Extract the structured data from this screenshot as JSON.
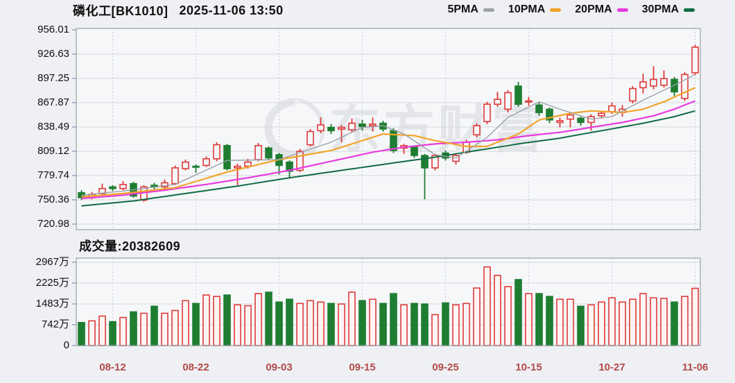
{
  "header": {
    "title": "磷化工[BK1010]",
    "datetime": "2025-11-06 13:50"
  },
  "legend": [
    {
      "id": "5pma",
      "label": "5PMA",
      "color": "#9ba1a8"
    },
    {
      "id": "10pma",
      "label": "10PMA",
      "color": "#f0a429"
    },
    {
      "id": "20pma",
      "label": "20PMA",
      "color": "#e83ae0"
    },
    {
      "id": "30pma",
      "label": "30PMA",
      "color": "#116b45"
    }
  ],
  "volume_header": {
    "label": "成交量:",
    "value": "20382609"
  },
  "watermark": {
    "text": "东方财富"
  },
  "colors": {
    "up": "#de3a3a",
    "down": "#1e7d31",
    "up_fill": "#fdf4f4",
    "plot_bg": "#f6f7f9",
    "grid": "#d4d7db",
    "grid_dash": "#c7cbd2",
    "border": "#9aa0a8",
    "tick": "#7d92b8",
    "x_label": "#b34a4a",
    "watermark": "#e3e5e9"
  },
  "chart_data": {
    "type": "candlestick+volume",
    "title": "磷化工[BK1010] 2025-11-06 13:50",
    "price_axis": {
      "ticks": [
        "956.01",
        "926.63",
        "897.25",
        "867.87",
        "838.49",
        "809.12",
        "779.74",
        "750.36",
        "720.98"
      ],
      "max": 956.01,
      "min": 720.98
    },
    "volume_axis": {
      "ticks": [
        "2967万",
        "2225万",
        "1483万",
        "742万",
        "0"
      ],
      "tick_values_wan": [
        2967,
        2225,
        1483,
        742,
        0
      ],
      "max_wan": 2967
    },
    "x_ticks": {
      "labels": [
        "08-12",
        "08-22",
        "09-03",
        "09-15",
        "09-25",
        "10-15",
        "10-27",
        "11-06"
      ],
      "indices": [
        3,
        11,
        19,
        27,
        35,
        43,
        51,
        59
      ]
    },
    "candle_fields": [
      "date",
      "open",
      "high",
      "low",
      "close",
      "volume_wan"
    ],
    "candles": [
      [
        "08-07",
        759,
        762,
        750,
        753,
        820
      ],
      [
        "08-08",
        753,
        760,
        751,
        757,
        880
      ],
      [
        "08-11",
        758,
        770,
        756,
        764,
        1050
      ],
      [
        "08-12",
        766,
        768,
        761,
        764,
        850
      ],
      [
        "08-13",
        764,
        773,
        762,
        769,
        1000
      ],
      [
        "08-14",
        770,
        772,
        753,
        755,
        1200
      ],
      [
        "08-15",
        750,
        768,
        748,
        766,
        1150
      ],
      [
        "08-18",
        768,
        771,
        763,
        766,
        1400
      ],
      [
        "08-19",
        766,
        775,
        764,
        771,
        1150
      ],
      [
        "08-20",
        770,
        792,
        768,
        789,
        1250
      ],
      [
        "08-21",
        788,
        799,
        786,
        796,
        1600
      ],
      [
        "08-22",
        791,
        793,
        783,
        790,
        1500
      ],
      [
        "08-25",
        792,
        803,
        790,
        800,
        1800
      ],
      [
        "08-26",
        800,
        820,
        797,
        817,
        1750
      ],
      [
        "08-27",
        816,
        818,
        786,
        788,
        1800
      ],
      [
        "08-28",
        789,
        794,
        768,
        791,
        1450
      ],
      [
        "08-29",
        791,
        800,
        788,
        796,
        1420
      ],
      [
        "09-01",
        799,
        819,
        797,
        816,
        1850
      ],
      [
        "09-02",
        813,
        815,
        798,
        801,
        1900
      ],
      [
        "09-03",
        805,
        807,
        781,
        792,
        1550
      ],
      [
        "09-04",
        796,
        798,
        776,
        785,
        1650
      ],
      [
        "09-05",
        786,
        812,
        784,
        809,
        1500
      ],
      [
        "09-08",
        817,
        836,
        815,
        833,
        1600
      ],
      [
        "09-09",
        834,
        850,
        831,
        841,
        1550
      ],
      [
        "09-10",
        838,
        842,
        830,
        834,
        1500
      ],
      [
        "09-11",
        836,
        841,
        820,
        838,
        1480
      ],
      [
        "09-12",
        835,
        849,
        832,
        843,
        1900
      ],
      [
        "09-15",
        842,
        847,
        834,
        839,
        1600
      ],
      [
        "09-16",
        840,
        850,
        833,
        842,
        1650
      ],
      [
        "09-17",
        843,
        846,
        833,
        836,
        1500
      ],
      [
        "09-18",
        834,
        837,
        807,
        810,
        1850
      ],
      [
        "09-19",
        813,
        818,
        806,
        816,
        1450
      ],
      [
        "09-22",
        814,
        816,
        801,
        804,
        1500
      ],
      [
        "09-23",
        804,
        806,
        751,
        789,
        1480
      ],
      [
        "09-24",
        789,
        806,
        786,
        804,
        1100
      ],
      [
        "09-25",
        807,
        810,
        798,
        801,
        1520
      ],
      [
        "09-26",
        797,
        807,
        793,
        804,
        1450
      ],
      [
        "09-29",
        808,
        823,
        806,
        820,
        1500
      ],
      [
        "09-30",
        829,
        843,
        826,
        840,
        2050
      ],
      [
        "10-09",
        845,
        869,
        842,
        866,
        2800
      ],
      [
        "10-10",
        866,
        881,
        863,
        872,
        2500
      ],
      [
        "10-13",
        860,
        883,
        856,
        880,
        2100
      ],
      [
        "10-14",
        888,
        893,
        863,
        866,
        2350
      ],
      [
        "10-15",
        869,
        875,
        864,
        870,
        1850
      ],
      [
        "10-16",
        865,
        868,
        852,
        856,
        1850
      ],
      [
        "10-17",
        860,
        862,
        843,
        847,
        1750
      ],
      [
        "10-20",
        844,
        850,
        838,
        846,
        1650
      ],
      [
        "10-21",
        848,
        856,
        838,
        853,
        1650
      ],
      [
        "10-22",
        849,
        851,
        840,
        844,
        1400
      ],
      [
        "10-23",
        844,
        854,
        834,
        851,
        1450
      ],
      [
        "10-24",
        852,
        858,
        849,
        855,
        1550
      ],
      [
        "10-27",
        857,
        868,
        854,
        864,
        1700
      ],
      [
        "10-28",
        856,
        865,
        851,
        860,
        1550
      ],
      [
        "10-29",
        870,
        888,
        867,
        885,
        1650
      ],
      [
        "10-30",
        886,
        903,
        879,
        893,
        1850
      ],
      [
        "10-31",
        888,
        912,
        884,
        896,
        1700
      ],
      [
        "11-03",
        889,
        907,
        886,
        897,
        1680
      ],
      [
        "11-04",
        896,
        899,
        876,
        881,
        1550
      ],
      [
        "11-05",
        873,
        905,
        870,
        902,
        1750
      ],
      [
        "11-06",
        904,
        938,
        901,
        935,
        2038
      ]
    ],
    "ma_lines": [
      {
        "name": "5PMA",
        "color": "#9ba1a8",
        "width": 1.4,
        "waypoints": [
          [
            0,
            756
          ],
          [
            4,
            761
          ],
          [
            9,
            769
          ],
          [
            14,
            798
          ],
          [
            19,
            799
          ],
          [
            24,
            820
          ],
          [
            27,
            838
          ],
          [
            29,
            840
          ],
          [
            31,
            830
          ],
          [
            34,
            805
          ],
          [
            36,
            801
          ],
          [
            39,
            826
          ],
          [
            41,
            850
          ],
          [
            44,
            869
          ],
          [
            46,
            860
          ],
          [
            49,
            848
          ],
          [
            51,
            851
          ],
          [
            54,
            871
          ],
          [
            57,
            889
          ],
          [
            59,
            902
          ]
        ]
      },
      {
        "name": "10PMA",
        "color": "#f0a429",
        "width": 2.2,
        "waypoints": [
          [
            0,
            754
          ],
          [
            4,
            758
          ],
          [
            9,
            765
          ],
          [
            14,
            784
          ],
          [
            19,
            799
          ],
          [
            24,
            810
          ],
          [
            29,
            830
          ],
          [
            32,
            828
          ],
          [
            34,
            822
          ],
          [
            37,
            815
          ],
          [
            39,
            815
          ],
          [
            42,
            830
          ],
          [
            44,
            847
          ],
          [
            47,
            855
          ],
          [
            49,
            858
          ],
          [
            52,
            856
          ],
          [
            54,
            860
          ],
          [
            56,
            869
          ],
          [
            59,
            886
          ]
        ]
      },
      {
        "name": "20PMA",
        "color": "#e83ae0",
        "width": 2.2,
        "waypoints": [
          [
            0,
            752
          ],
          [
            4,
            756
          ],
          [
            8,
            762
          ],
          [
            12,
            769
          ],
          [
            16,
            777
          ],
          [
            20,
            786
          ],
          [
            24,
            797
          ],
          [
            28,
            808
          ],
          [
            31,
            814
          ],
          [
            34,
            818
          ],
          [
            37,
            820
          ],
          [
            40,
            823
          ],
          [
            43,
            828
          ],
          [
            46,
            832
          ],
          [
            49,
            838
          ],
          [
            52,
            844
          ],
          [
            55,
            852
          ],
          [
            57,
            860
          ],
          [
            59,
            870
          ]
        ]
      },
      {
        "name": "30PMA",
        "color": "#116b45",
        "width": 2,
        "waypoints": [
          [
            0,
            743
          ],
          [
            5,
            749
          ],
          [
            10,
            758
          ],
          [
            15,
            767
          ],
          [
            20,
            777
          ],
          [
            25,
            786
          ],
          [
            30,
            795
          ],
          [
            34,
            802
          ],
          [
            38,
            810
          ],
          [
            42,
            818
          ],
          [
            46,
            825
          ],
          [
            50,
            834
          ],
          [
            54,
            843
          ],
          [
            57,
            851
          ],
          [
            59,
            858
          ]
        ]
      }
    ]
  }
}
